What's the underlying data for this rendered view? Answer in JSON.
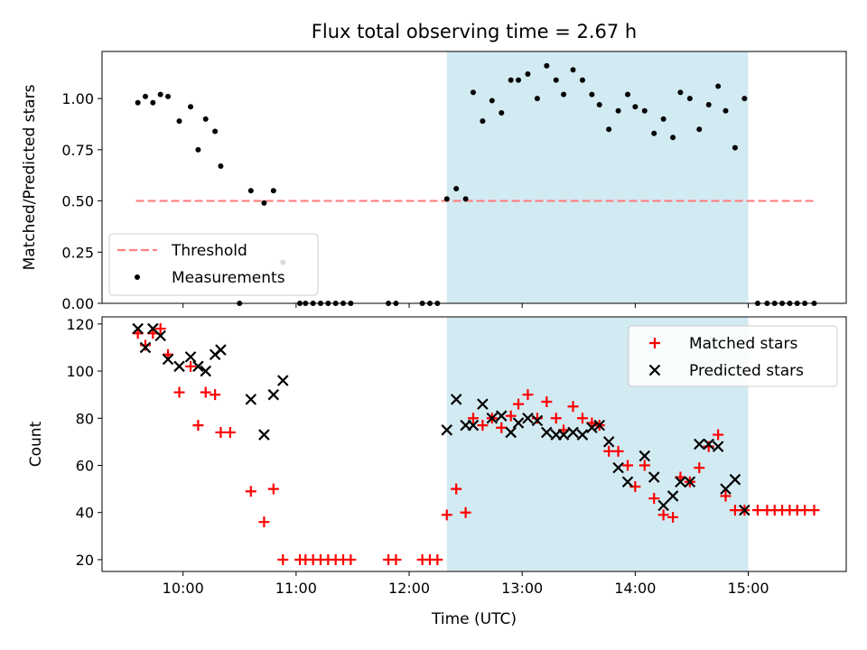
{
  "title": "Flux total observing time = 2.67 h",
  "colors": {
    "threshold": "#ff7f7f",
    "measurement": "#000000",
    "matched": "#ff0000",
    "predicted": "#000000",
    "shade": "#add8e6"
  },
  "chart_data": [
    {
      "type": "scatter",
      "ylabel": "Matched/Predicted stars",
      "ylim": [
        0,
        1.23
      ],
      "yticks": [
        0,
        0.25,
        0.5,
        0.75,
        1.0
      ],
      "ytick_labels": [
        "0.00",
        "0.25",
        "0.50",
        "0.75",
        "1.00"
      ],
      "grid": false,
      "legend_position": "bottom-left",
      "shaded_interval": [
        "12:20",
        "15:00"
      ],
      "threshold": {
        "name": "Threshold",
        "value": 0.5,
        "x": [
          "09:35",
          "15:35"
        ],
        "style": "dashed"
      },
      "series": [
        {
          "name": "Measurements",
          "points": [
            [
              "09:36",
              0.98
            ],
            [
              "09:40",
              1.01
            ],
            [
              "09:44",
              0.98
            ],
            [
              "09:48",
              1.02
            ],
            [
              "09:52",
              1.01
            ],
            [
              "09:58",
              0.89
            ],
            [
              "10:04",
              0.96
            ],
            [
              "10:08",
              0.75
            ],
            [
              "10:12",
              0.9
            ],
            [
              "10:17",
              0.84
            ],
            [
              "10:20",
              0.67
            ],
            [
              "10:30",
              0.0
            ],
            [
              "10:36",
              0.55
            ],
            [
              "10:43",
              0.49
            ],
            [
              "10:48",
              0.55
            ],
            [
              "10:53",
              0.2
            ],
            [
              "11:02",
              0.0
            ],
            [
              "11:05",
              0.0
            ],
            [
              "11:09",
              0.0
            ],
            [
              "11:13",
              0.0
            ],
            [
              "11:17",
              0.0
            ],
            [
              "11:21",
              0.0
            ],
            [
              "11:25",
              0.0
            ],
            [
              "11:29",
              0.0
            ],
            [
              "11:49",
              0.0
            ],
            [
              "11:53",
              0.0
            ],
            [
              "12:07",
              0.0
            ],
            [
              "12:11",
              0.0
            ],
            [
              "12:15",
              0.0
            ],
            [
              "12:20",
              0.51
            ],
            [
              "12:25",
              0.56
            ],
            [
              "12:30",
              0.51
            ],
            [
              "12:34",
              1.03
            ],
            [
              "12:39",
              0.89
            ],
            [
              "12:44",
              0.99
            ],
            [
              "12:49",
              0.93
            ],
            [
              "12:54",
              1.09
            ],
            [
              "12:58",
              1.09
            ],
            [
              "13:03",
              1.12
            ],
            [
              "13:08",
              1.0
            ],
            [
              "13:13",
              1.16
            ],
            [
              "13:18",
              1.09
            ],
            [
              "13:22",
              1.02
            ],
            [
              "13:27",
              1.14
            ],
            [
              "13:32",
              1.09
            ],
            [
              "13:37",
              1.02
            ],
            [
              "13:41",
              0.97
            ],
            [
              "13:46",
              0.85
            ],
            [
              "13:51",
              0.94
            ],
            [
              "13:56",
              1.02
            ],
            [
              "14:00",
              0.96
            ],
            [
              "14:05",
              0.94
            ],
            [
              "14:10",
              0.83
            ],
            [
              "14:15",
              0.9
            ],
            [
              "14:20",
              0.81
            ],
            [
              "14:24",
              1.03
            ],
            [
              "14:29",
              1.0
            ],
            [
              "14:34",
              0.85
            ],
            [
              "14:39",
              0.97
            ],
            [
              "14:44",
              1.06
            ],
            [
              "14:48",
              0.94
            ],
            [
              "14:53",
              0.76
            ],
            [
              "14:58",
              1.0
            ],
            [
              "15:05",
              0.0
            ],
            [
              "15:10",
              0.0
            ],
            [
              "15:14",
              0.0
            ],
            [
              "15:18",
              0.0
            ],
            [
              "15:22",
              0.0
            ],
            [
              "15:26",
              0.0
            ],
            [
              "15:30",
              0.0
            ],
            [
              "15:35",
              0.0
            ]
          ]
        }
      ]
    },
    {
      "type": "scatter",
      "xlabel": "Time (UTC)",
      "ylabel": "Count",
      "xlim": [
        "09:17",
        "15:52"
      ],
      "xticks": [
        "10:00",
        "11:00",
        "12:00",
        "13:00",
        "14:00",
        "15:00"
      ],
      "ylim": [
        15,
        123
      ],
      "yticks": [
        20,
        40,
        60,
        80,
        100,
        120
      ],
      "grid": false,
      "legend_position": "top-right",
      "shaded_interval": [
        "12:20",
        "15:00"
      ],
      "series": [
        {
          "name": "Matched stars",
          "marker": "+",
          "points": [
            [
              "09:36",
              116
            ],
            [
              "09:40",
              111
            ],
            [
              "09:44",
              116
            ],
            [
              "09:48",
              118
            ],
            [
              "09:52",
              107
            ],
            [
              "09:58",
              91
            ],
            [
              "10:04",
              102
            ],
            [
              "10:08",
              77
            ],
            [
              "10:12",
              91
            ],
            [
              "10:17",
              90
            ],
            [
              "10:20",
              74
            ],
            [
              "10:25",
              74
            ],
            [
              "10:36",
              49
            ],
            [
              "10:43",
              36
            ],
            [
              "10:48",
              50
            ],
            [
              "10:53",
              20
            ],
            [
              "11:02",
              20
            ],
            [
              "11:05",
              20
            ],
            [
              "11:09",
              20
            ],
            [
              "11:13",
              20
            ],
            [
              "11:17",
              20
            ],
            [
              "11:21",
              20
            ],
            [
              "11:25",
              20
            ],
            [
              "11:29",
              20
            ],
            [
              "11:49",
              20
            ],
            [
              "11:53",
              20
            ],
            [
              "12:07",
              20
            ],
            [
              "12:11",
              20
            ],
            [
              "12:15",
              20
            ],
            [
              "12:20",
              39
            ],
            [
              "12:25",
              50
            ],
            [
              "12:30",
              40
            ],
            [
              "12:34",
              80
            ],
            [
              "12:39",
              77
            ],
            [
              "12:44",
              80
            ],
            [
              "12:49",
              76
            ],
            [
              "12:54",
              81
            ],
            [
              "12:58",
              86
            ],
            [
              "13:03",
              90
            ],
            [
              "13:08",
              80
            ],
            [
              "13:13",
              87
            ],
            [
              "13:18",
              80
            ],
            [
              "13:22",
              75
            ],
            [
              "13:27",
              85
            ],
            [
              "13:32",
              80
            ],
            [
              "13:37",
              78
            ],
            [
              "13:41",
              77
            ],
            [
              "13:46",
              66
            ],
            [
              "13:51",
              66
            ],
            [
              "13:56",
              60
            ],
            [
              "14:00",
              51
            ],
            [
              "14:05",
              60
            ],
            [
              "14:10",
              46
            ],
            [
              "14:15",
              39
            ],
            [
              "14:20",
              38
            ],
            [
              "14:24",
              55
            ],
            [
              "14:29",
              53
            ],
            [
              "14:34",
              59
            ],
            [
              "14:39",
              68
            ],
            [
              "14:44",
              73
            ],
            [
              "14:48",
              47
            ],
            [
              "14:53",
              41
            ],
            [
              "14:58",
              41
            ],
            [
              "15:05",
              41
            ],
            [
              "15:10",
              41
            ],
            [
              "15:14",
              41
            ],
            [
              "15:18",
              41
            ],
            [
              "15:22",
              41
            ],
            [
              "15:26",
              41
            ],
            [
              "15:30",
              41
            ],
            [
              "15:35",
              41
            ]
          ]
        },
        {
          "name": "Predicted stars",
          "marker": "x",
          "points": [
            [
              "09:36",
              118
            ],
            [
              "09:40",
              110
            ],
            [
              "09:44",
              118
            ],
            [
              "09:48",
              115
            ],
            [
              "09:52",
              105
            ],
            [
              "09:58",
              102
            ],
            [
              "10:04",
              106
            ],
            [
              "10:08",
              102
            ],
            [
              "10:12",
              100
            ],
            [
              "10:17",
              107
            ],
            [
              "10:20",
              109
            ],
            [
              "10:36",
              88
            ],
            [
              "10:43",
              73
            ],
            [
              "10:48",
              90
            ],
            [
              "10:53",
              96
            ],
            [
              "12:20",
              75
            ],
            [
              "12:25",
              88
            ],
            [
              "12:30",
              77
            ],
            [
              "12:34",
              77
            ],
            [
              "12:39",
              86
            ],
            [
              "12:44",
              80
            ],
            [
              "12:49",
              81
            ],
            [
              "12:54",
              74
            ],
            [
              "12:58",
              78
            ],
            [
              "13:03",
              80
            ],
            [
              "13:08",
              79
            ],
            [
              "13:13",
              74
            ],
            [
              "13:18",
              73
            ],
            [
              "13:22",
              73
            ],
            [
              "13:27",
              74
            ],
            [
              "13:32",
              73
            ],
            [
              "13:37",
              76
            ],
            [
              "13:41",
              77
            ],
            [
              "13:46",
              70
            ],
            [
              "13:51",
              59
            ],
            [
              "13:56",
              53
            ],
            [
              "14:05",
              64
            ],
            [
              "14:10",
              55
            ],
            [
              "14:15",
              43
            ],
            [
              "14:20",
              47
            ],
            [
              "14:24",
              53
            ],
            [
              "14:29",
              53
            ],
            [
              "14:34",
              69
            ],
            [
              "14:39",
              69
            ],
            [
              "14:44",
              68
            ],
            [
              "14:48",
              50
            ],
            [
              "14:53",
              54
            ],
            [
              "14:58",
              41
            ]
          ]
        }
      ]
    }
  ]
}
